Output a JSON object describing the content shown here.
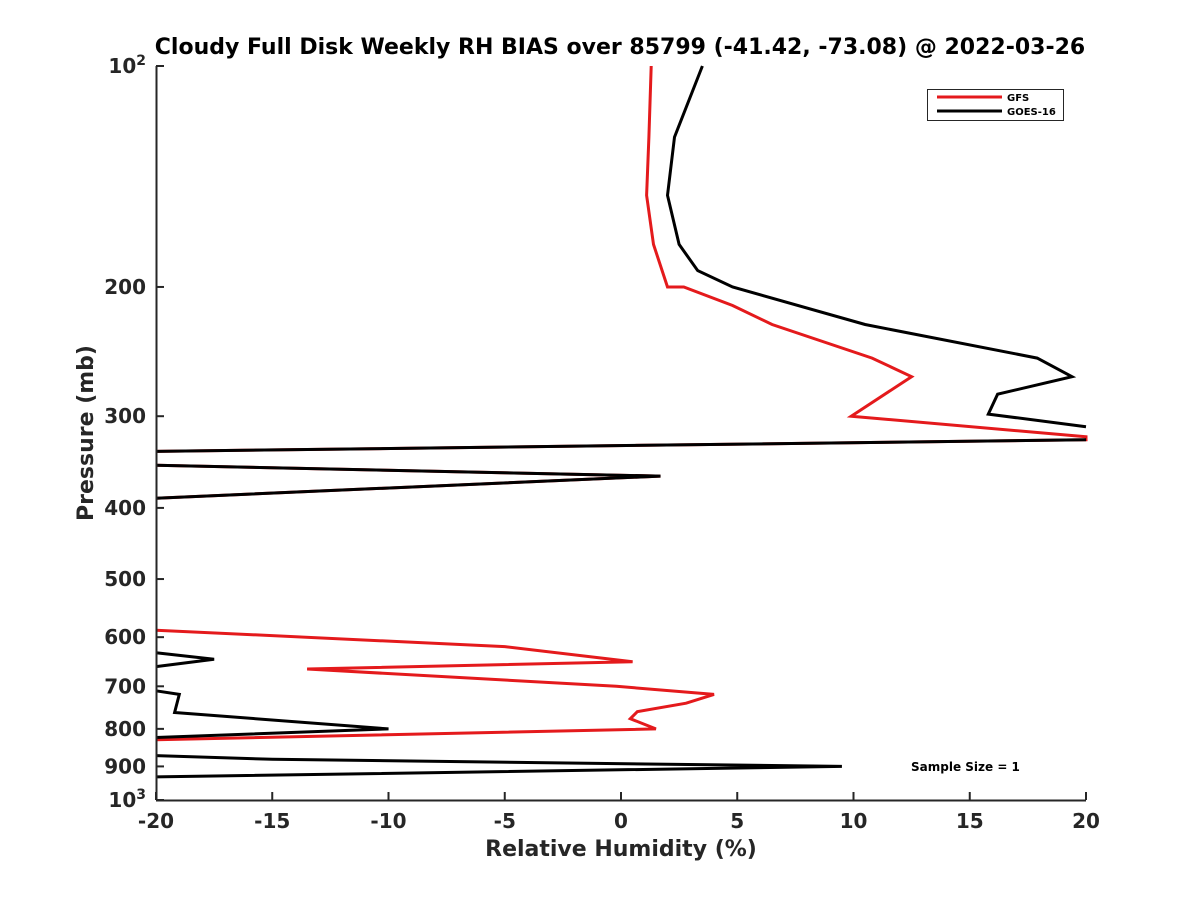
{
  "chart_data": {
    "type": "line",
    "title": "Cloudy Full Disk Weekly RH BIAS over 85799 (-41.42, -73.08) @ 2022-03-26",
    "xlabel": "Relative Humidity (%)",
    "ylabel": "Pressure (mb)",
    "xlim": [
      -20,
      20
    ],
    "ylim": [
      100,
      1000
    ],
    "y_scale": "log",
    "y_reversed": true,
    "x_ticks": [
      "-20",
      "-15",
      "-10",
      "-5",
      "0",
      "5",
      "10",
      "15",
      "20"
    ],
    "y_ticks": [
      {
        "value": 100,
        "base": "10",
        "exp": "2"
      },
      {
        "value": 200,
        "label": "200"
      },
      {
        "value": 300,
        "label": "300"
      },
      {
        "value": 400,
        "label": "400"
      },
      {
        "value": 500,
        "label": "500"
      },
      {
        "value": 600,
        "label": "600"
      },
      {
        "value": 700,
        "label": "700"
      },
      {
        "value": 800,
        "label": "800"
      },
      {
        "value": 900,
        "label": "900"
      },
      {
        "value": 1000,
        "base": "10",
        "exp": "3"
      }
    ],
    "legend_position": "top-right",
    "annotation": "Sample Size = 1",
    "series": [
      {
        "name": "GFS",
        "color": "#e41a1c",
        "segments": [
          [
            [
              1.3,
              100
            ],
            [
              1.2,
              125
            ],
            [
              1.1,
              150
            ],
            [
              1.4,
              175
            ],
            [
              2.0,
              200
            ],
            [
              2.7,
              200
            ],
            [
              4.8,
              212
            ],
            [
              6.5,
              225
            ],
            [
              10.8,
              250
            ],
            [
              12.5,
              265
            ],
            [
              9.9,
              300
            ],
            [
              20,
              320
            ],
            [
              20,
              323
            ],
            [
              -20,
              335
            ]
          ],
          [
            [
              -20,
              350
            ],
            [
              1.7,
              362
            ],
            [
              -20,
              388
            ]
          ],
          [
            [
              -20,
              587
            ],
            [
              -5,
              618
            ],
            [
              0.5,
              648
            ],
            [
              -13.5,
              663
            ],
            [
              -0.2,
              700
            ],
            [
              4,
              718
            ],
            [
              2.8,
              738
            ],
            [
              0.7,
              758
            ],
            [
              0.4,
              775
            ],
            [
              1.5,
              800
            ],
            [
              -20,
              828
            ]
          ]
        ]
      },
      {
        "name": "GOES-16",
        "color": "#000000",
        "segments": [
          [
            [
              3.5,
              100
            ],
            [
              2.3,
              125
            ],
            [
              2.0,
              150
            ],
            [
              2.5,
              175
            ],
            [
              3.3,
              190
            ],
            [
              4.8,
              200
            ],
            [
              10.5,
              225
            ],
            [
              17.9,
              250
            ],
            [
              19.4,
              265
            ],
            [
              16.2,
              280
            ],
            [
              15.8,
              298
            ],
            [
              20,
              310
            ]
          ],
          [
            [
              20,
              323
            ],
            [
              -20,
              335
            ]
          ],
          [
            [
              -20,
              350
            ],
            [
              1.7,
              362
            ],
            [
              -20,
              388
            ]
          ],
          [
            [
              -20,
              630
            ],
            [
              -17.5,
              643
            ],
            [
              -20,
              658
            ]
          ],
          [
            [
              -20,
              710
            ],
            [
              -19,
              718
            ],
            [
              -19.2,
              760
            ],
            [
              -10,
              800
            ],
            [
              -20,
              822
            ]
          ],
          [
            [
              -20,
              870
            ],
            [
              -15,
              880
            ],
            [
              9.5,
              900
            ],
            [
              -20,
              930
            ]
          ]
        ]
      }
    ]
  }
}
